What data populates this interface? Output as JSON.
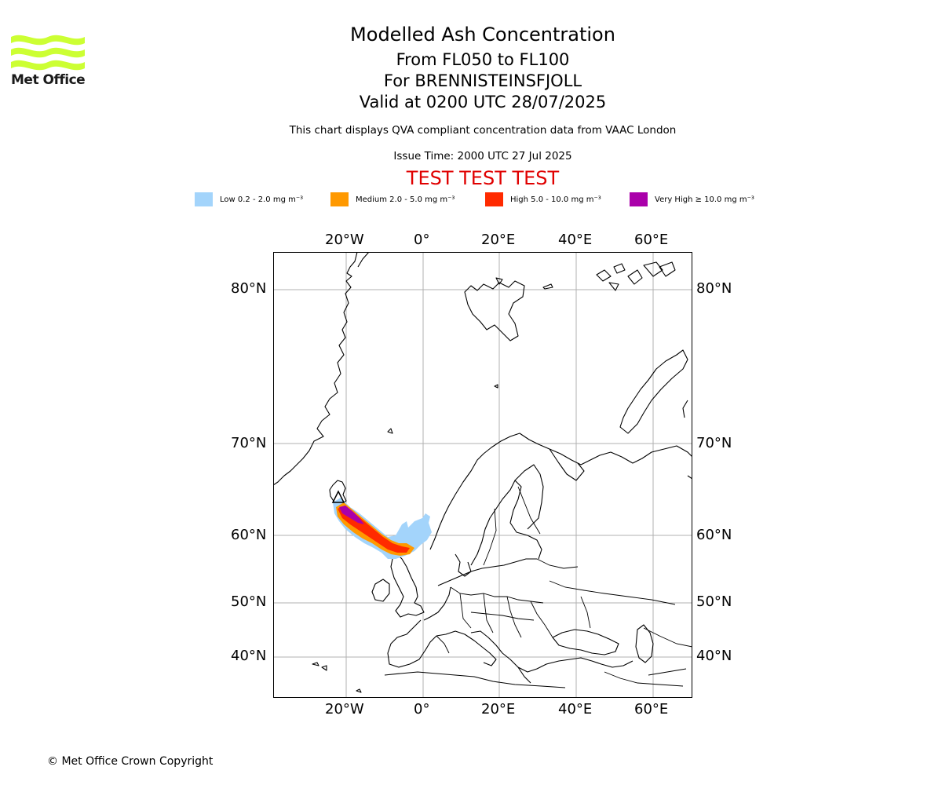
{
  "header": {
    "logo_text": "Met Office",
    "title": "Modelled Ash Concentration",
    "level_range": "From FL050 to FL100",
    "volcano": "For BRENNISTEINSFJOLL",
    "valid_time": "Valid at 0200 UTC 28/07/2025",
    "description": "This chart displays QVA compliant concentration data from VAAC London",
    "issue_time": "Issue Time: 2000 UTC 27 Jul 2025",
    "test_banner": "TEST TEST TEST"
  },
  "legend": [
    {
      "label": "Low 0.2 - 2.0 mg m⁻³",
      "color": "#a3d4fb"
    },
    {
      "label": "Medium 2.0 - 5.0 mg m⁻³",
      "color": "#ff9900"
    },
    {
      "label": "High 5.0 - 10.0 mg m⁻³",
      "color": "#ff2a00"
    },
    {
      "label": "Very High ≥ 10.0 mg m⁻³",
      "color": "#aa00aa"
    }
  ],
  "map": {
    "lon_ticks": [
      "20°W",
      "0°",
      "20°E",
      "40°E",
      "60°E"
    ],
    "lat_ticks": [
      "80°N",
      "70°N",
      "60°N",
      "50°N",
      "40°N"
    ],
    "gridlines": true,
    "volcano_marker": "triangle"
  },
  "footer": {
    "copyright": "© Met Office Crown Copyright"
  }
}
